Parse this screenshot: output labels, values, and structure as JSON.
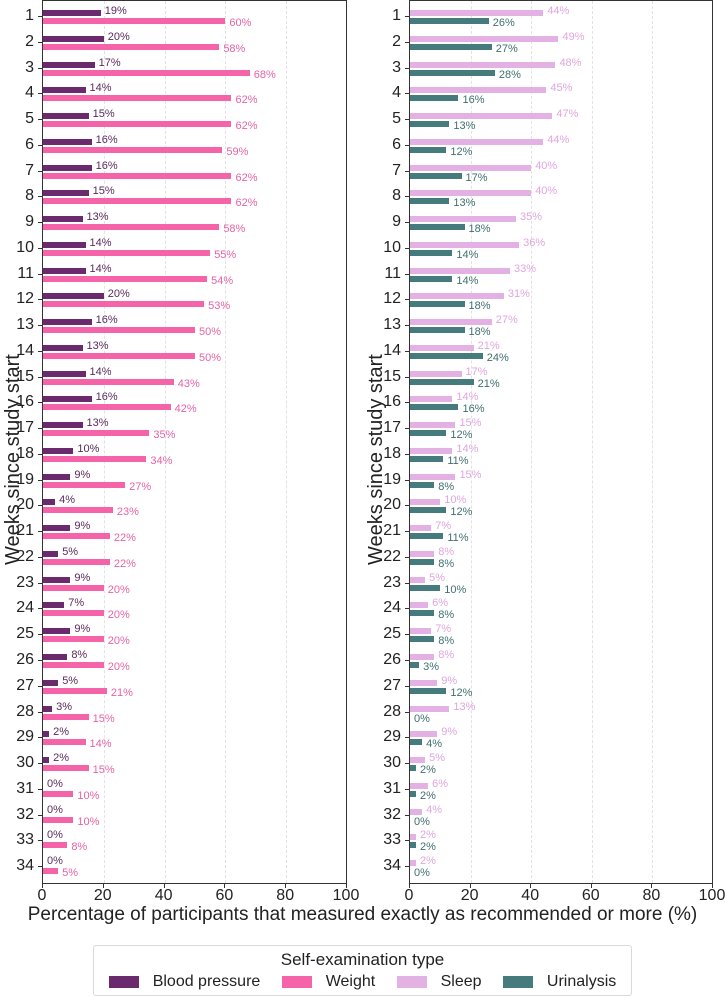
{
  "chart_data": [
    {
      "type": "bar",
      "orientation": "horizontal",
      "panel": "left",
      "ylabel": "Weeks since study start",
      "xlabel": "Percentage of participants that measured exactly as recommended or more (%)",
      "xlim": [
        0,
        100
      ],
      "xticks": [
        0,
        20,
        40,
        60,
        80,
        100
      ],
      "grid": "vertical dashed",
      "categories": [
        1,
        2,
        3,
        4,
        5,
        6,
        7,
        8,
        9,
        10,
        11,
        12,
        13,
        14,
        15,
        16,
        17,
        18,
        19,
        20,
        21,
        22,
        23,
        24,
        25,
        26,
        27,
        28,
        29,
        30,
        31,
        32,
        33,
        34
      ],
      "series": [
        {
          "name": "Blood pressure",
          "color": "#6b2a6e",
          "values": [
            19,
            20,
            17,
            14,
            15,
            16,
            16,
            15,
            13,
            14,
            14,
            20,
            16,
            13,
            14,
            16,
            13,
            10,
            9,
            4,
            9,
            5,
            9,
            7,
            9,
            8,
            5,
            3,
            2,
            2,
            0,
            0,
            0,
            0
          ]
        },
        {
          "name": "Weight",
          "color": "#f564a9",
          "values": [
            60,
            58,
            68,
            62,
            62,
            59,
            62,
            62,
            58,
            55,
            54,
            53,
            50,
            50,
            43,
            42,
            35,
            34,
            27,
            23,
            22,
            22,
            20,
            20,
            20,
            20,
            21,
            15,
            14,
            15,
            10,
            10,
            8,
            5
          ]
        }
      ]
    },
    {
      "type": "bar",
      "orientation": "horizontal",
      "panel": "right",
      "ylabel": "Weeks since study start",
      "xlabel": "Percentage of participants that measured exactly as recommended or more (%)",
      "xlim": [
        0,
        100
      ],
      "xticks": [
        0,
        20,
        40,
        60,
        80,
        100
      ],
      "grid": "vertical dashed",
      "categories": [
        1,
        2,
        3,
        4,
        5,
        6,
        7,
        8,
        9,
        10,
        11,
        12,
        13,
        14,
        15,
        16,
        17,
        18,
        19,
        20,
        21,
        22,
        23,
        24,
        25,
        26,
        27,
        28,
        29,
        30,
        31,
        32,
        33,
        34
      ],
      "series": [
        {
          "name": "Sleep",
          "color": "#e4b1e4",
          "values": [
            44,
            49,
            48,
            45,
            47,
            44,
            40,
            40,
            35,
            36,
            33,
            31,
            27,
            21,
            17,
            14,
            15,
            14,
            15,
            10,
            7,
            8,
            5,
            6,
            7,
            8,
            9,
            13,
            9,
            5,
            6,
            4,
            2,
            2
          ]
        },
        {
          "name": "Urinalysis",
          "color": "#457b7d",
          "values": [
            26,
            27,
            28,
            16,
            13,
            12,
            17,
            13,
            18,
            14,
            14,
            18,
            18,
            24,
            21,
            16,
            12,
            11,
            8,
            12,
            11,
            8,
            10,
            8,
            8,
            3,
            12,
            0,
            4,
            2,
            2,
            0,
            2,
            0
          ]
        }
      ]
    }
  ],
  "axes": {
    "ylabel": "Weeks since study start",
    "xlabel": "Percentage of participants that measured exactly as recommended or more (%)",
    "xticks": [
      "0",
      "20",
      "40",
      "60",
      "80",
      "100"
    ]
  },
  "legend": {
    "title": "Self-examination type",
    "items": [
      {
        "label": "Blood pressure",
        "color": "#6b2a6e"
      },
      {
        "label": "Weight",
        "color": "#f564a9"
      },
      {
        "label": "Sleep",
        "color": "#e4b1e4"
      },
      {
        "label": "Urinalysis",
        "color": "#457b7d"
      }
    ]
  },
  "label_colors": {
    "Blood pressure": "#5a2a5c",
    "Weight": "#e563a6",
    "Sleep": "#e0a6de",
    "Urinalysis": "#3f6f70"
  }
}
